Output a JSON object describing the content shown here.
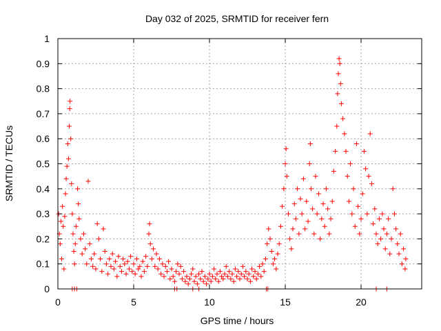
{
  "chart_data": {
    "type": "scatter",
    "title": "Day 032 of 2025, SRMTID for receiver fern",
    "xlabel": "GPS time / hours",
    "ylabel": "SRMTID / TECUs",
    "xlim": [
      0,
      24
    ],
    "ylim": [
      0,
      1
    ],
    "x_ticks": [
      0,
      5,
      10,
      15,
      20
    ],
    "x_tick_labels": [
      "0",
      "5",
      "10",
      "15",
      "20"
    ],
    "y_ticks": [
      0,
      0.1,
      0.2,
      0.3,
      0.4,
      0.5,
      0.6,
      0.7,
      0.8,
      0.9,
      1
    ],
    "y_tick_labels": [
      "0",
      "0.1",
      "0.2",
      "0.3",
      "0.4",
      "0.5",
      "0.6",
      "0.7",
      "0.8",
      "0.9",
      "1"
    ],
    "grid": true,
    "marker": "+",
    "color": "#ff0000",
    "series": [
      {
        "name": "SRMTID",
        "points": [
          [
            0.05,
            0.3
          ],
          [
            0.1,
            0.22
          ],
          [
            0.15,
            0.18
          ],
          [
            0.2,
            0.27
          ],
          [
            0.25,
            0.12
          ],
          [
            0.3,
            0.33
          ],
          [
            0.35,
            0.25
          ],
          [
            0.4,
            0.08
          ],
          [
            0.45,
            0.29
          ],
          [
            0.5,
            0.38
          ],
          [
            0.55,
            0.44
          ],
          [
            0.6,
            0.49
          ],
          [
            0.65,
            0.58
          ],
          [
            0.7,
            0.52
          ],
          [
            0.75,
            0.65
          ],
          [
            0.78,
            0.72
          ],
          [
            0.8,
            0.75
          ],
          [
            0.85,
            0.6
          ],
          [
            0.9,
            0.42
          ],
          [
            0.95,
            0.3
          ],
          [
            1.0,
            0.22
          ],
          [
            1.05,
            0.15
          ],
          [
            1.1,
            0.1
          ],
          [
            1.15,
            0.18
          ],
          [
            1.2,
            0.25
          ],
          [
            1.3,
            0.4
          ],
          [
            1.35,
            0.34
          ],
          [
            1.4,
            0.28
          ],
          [
            1.5,
            0.2
          ],
          [
            1.6,
            0.14
          ],
          [
            1.7,
            0.22
          ],
          [
            1.8,
            0.16
          ],
          [
            1.9,
            0.1
          ],
          [
            2.0,
            0.43
          ],
          [
            2.1,
            0.18
          ],
          [
            2.2,
            0.12
          ],
          [
            2.3,
            0.09
          ],
          [
            2.4,
            0.14
          ],
          [
            2.5,
            0.08
          ],
          [
            2.6,
            0.26
          ],
          [
            2.7,
            0.2
          ],
          [
            2.8,
            0.12
          ],
          [
            2.9,
            0.07
          ],
          [
            3.0,
            0.24
          ],
          [
            3.1,
            0.15
          ],
          [
            3.2,
            0.1
          ],
          [
            3.3,
            0.06
          ],
          [
            3.4,
            0.12
          ],
          [
            3.5,
            0.09
          ],
          [
            3.6,
            0.14
          ],
          [
            3.7,
            0.08
          ],
          [
            3.8,
            0.11
          ],
          [
            3.9,
            0.05
          ],
          [
            4.0,
            0.13
          ],
          [
            4.1,
            0.09
          ],
          [
            4.2,
            0.07
          ],
          [
            4.3,
            0.12
          ],
          [
            4.4,
            0.1
          ],
          [
            4.5,
            0.06
          ],
          [
            4.6,
            0.11
          ],
          [
            4.7,
            0.08
          ],
          [
            4.8,
            0.13
          ],
          [
            4.9,
            0.07
          ],
          [
            5.0,
            0.1
          ],
          [
            5.1,
            0.06
          ],
          [
            5.2,
            0.12
          ],
          [
            5.3,
            0.08
          ],
          [
            5.4,
            0.09
          ],
          [
            5.5,
            0.05
          ],
          [
            5.6,
            0.11
          ],
          [
            5.7,
            0.07
          ],
          [
            5.8,
            0.13
          ],
          [
            5.9,
            0.09
          ],
          [
            6.0,
            0.22
          ],
          [
            6.05,
            0.26
          ],
          [
            6.1,
            0.18
          ],
          [
            6.2,
            0.12
          ],
          [
            6.3,
            0.16
          ],
          [
            6.4,
            0.09
          ],
          [
            6.5,
            0.14
          ],
          [
            6.6,
            0.08
          ],
          [
            6.7,
            0.12
          ],
          [
            6.8,
            0.06
          ],
          [
            6.9,
            0.1
          ],
          [
            7.0,
            0.05
          ],
          [
            7.1,
            0.09
          ],
          [
            7.2,
            0.07
          ],
          [
            7.3,
            0.11
          ],
          [
            7.4,
            0.04
          ],
          [
            7.5,
            0.08
          ],
          [
            7.6,
            0.05
          ],
          [
            7.7,
            0.03
          ],
          [
            7.8,
            0.07
          ],
          [
            7.9,
            0.1
          ],
          [
            8.0,
            0.06
          ],
          [
            8.1,
            0.09
          ],
          [
            8.2,
            0.04
          ],
          [
            8.3,
            0.07
          ],
          [
            8.4,
            0.03
          ],
          [
            8.5,
            0.05
          ],
          [
            8.6,
            0.02
          ],
          [
            8.7,
            0.04
          ],
          [
            8.8,
            0.06
          ],
          [
            8.9,
            0.08
          ],
          [
            9.0,
            0.03
          ],
          [
            9.1,
            0.05
          ],
          [
            9.2,
            0.02
          ],
          [
            9.3,
            0.06
          ],
          [
            9.4,
            0.04
          ],
          [
            9.5,
            0.07
          ],
          [
            9.6,
            0.03
          ],
          [
            9.7,
            0.05
          ],
          [
            9.8,
            0.02
          ],
          [
            9.9,
            0.04
          ],
          [
            10.0,
            0.06
          ],
          [
            10.1,
            0.03
          ],
          [
            10.2,
            0.05
          ],
          [
            10.3,
            0.08
          ],
          [
            10.4,
            0.04
          ],
          [
            10.5,
            0.06
          ],
          [
            10.6,
            0.03
          ],
          [
            10.7,
            0.07
          ],
          [
            10.8,
            0.05
          ],
          [
            10.9,
            0.04
          ],
          [
            11.0,
            0.06
          ],
          [
            11.1,
            0.09
          ],
          [
            11.2,
            0.05
          ],
          [
            11.3,
            0.07
          ],
          [
            11.4,
            0.04
          ],
          [
            11.5,
            0.06
          ],
          [
            11.6,
            0.03
          ],
          [
            11.7,
            0.08
          ],
          [
            11.8,
            0.05
          ],
          [
            11.9,
            0.07
          ],
          [
            12.0,
            0.04
          ],
          [
            12.1,
            0.06
          ],
          [
            12.2,
            0.09
          ],
          [
            12.3,
            0.05
          ],
          [
            12.4,
            0.07
          ],
          [
            12.5,
            0.04
          ],
          [
            12.6,
            0.06
          ],
          [
            12.7,
            0.03
          ],
          [
            12.8,
            0.08
          ],
          [
            12.9,
            0.05
          ],
          [
            13.0,
            0.07
          ],
          [
            13.1,
            0.04
          ],
          [
            13.2,
            0.06
          ],
          [
            13.3,
            0.09
          ],
          [
            13.4,
            0.05
          ],
          [
            13.5,
            0.1
          ],
          [
            13.6,
            0.07
          ],
          [
            13.7,
            0.12
          ],
          [
            13.8,
            0.18
          ],
          [
            13.9,
            0.24
          ],
          [
            14.0,
            0.2
          ],
          [
            14.1,
            0.15
          ],
          [
            14.2,
            0.1
          ],
          [
            14.3,
            0.12
          ],
          [
            14.4,
            0.08
          ],
          [
            14.5,
            0.14
          ],
          [
            14.6,
            0.18
          ],
          [
            14.7,
            0.25
          ],
          [
            14.8,
            0.33
          ],
          [
            14.9,
            0.4
          ],
          [
            15.0,
            0.5
          ],
          [
            15.05,
            0.56
          ],
          [
            15.1,
            0.45
          ],
          [
            15.2,
            0.3
          ],
          [
            15.3,
            0.2
          ],
          [
            15.4,
            0.16
          ],
          [
            15.5,
            0.24
          ],
          [
            15.6,
            0.34
          ],
          [
            15.7,
            0.28
          ],
          [
            15.8,
            0.4
          ],
          [
            15.9,
            0.22
          ],
          [
            16.0,
            0.36
          ],
          [
            16.1,
            0.3
          ],
          [
            16.2,
            0.44
          ],
          [
            16.3,
            0.24
          ],
          [
            16.4,
            0.35
          ],
          [
            16.5,
            0.27
          ],
          [
            16.6,
            0.5
          ],
          [
            16.65,
            0.58
          ],
          [
            16.7,
            0.4
          ],
          [
            16.8,
            0.32
          ],
          [
            16.9,
            0.22
          ],
          [
            17.0,
            0.45
          ],
          [
            17.1,
            0.3
          ],
          [
            17.2,
            0.38
          ],
          [
            17.3,
            0.2
          ],
          [
            17.4,
            0.28
          ],
          [
            17.5,
            0.34
          ],
          [
            17.6,
            0.25
          ],
          [
            17.7,
            0.4
          ],
          [
            17.8,
            0.32
          ],
          [
            17.9,
            0.22
          ],
          [
            18.0,
            0.28
          ],
          [
            18.1,
            0.35
          ],
          [
            18.2,
            0.47
          ],
          [
            18.3,
            0.55
          ],
          [
            18.4,
            0.65
          ],
          [
            18.45,
            0.78
          ],
          [
            18.5,
            0.86
          ],
          [
            18.55,
            0.92
          ],
          [
            18.6,
            0.9
          ],
          [
            18.65,
            0.82
          ],
          [
            18.7,
            0.74
          ],
          [
            18.8,
            0.68
          ],
          [
            18.9,
            0.62
          ],
          [
            19.0,
            0.55
          ],
          [
            19.1,
            0.45
          ],
          [
            19.2,
            0.35
          ],
          [
            19.3,
            0.5
          ],
          [
            19.4,
            0.3
          ],
          [
            19.5,
            0.4
          ],
          [
            19.6,
            0.25
          ],
          [
            19.7,
            0.58
          ],
          [
            19.8,
            0.33
          ],
          [
            19.9,
            0.22
          ],
          [
            20.0,
            0.28
          ],
          [
            20.1,
            0.38
          ],
          [
            20.2,
            0.55
          ],
          [
            20.3,
            0.48
          ],
          [
            20.4,
            0.3
          ],
          [
            20.5,
            0.45
          ],
          [
            20.6,
            0.62
          ],
          [
            20.7,
            0.42
          ],
          [
            20.8,
            0.26
          ],
          [
            20.9,
            0.32
          ],
          [
            21.0,
            0.22
          ],
          [
            21.1,
            0.18
          ],
          [
            21.2,
            0.28
          ],
          [
            21.3,
            0.2
          ],
          [
            21.4,
            0.3
          ],
          [
            21.5,
            0.24
          ],
          [
            21.6,
            0.16
          ],
          [
            21.7,
            0.22
          ],
          [
            21.8,
            0.28
          ],
          [
            21.9,
            0.14
          ],
          [
            22.0,
            0.2
          ],
          [
            22.1,
            0.4
          ],
          [
            22.2,
            0.3
          ],
          [
            22.3,
            0.24
          ],
          [
            22.4,
            0.18
          ],
          [
            22.5,
            0.14
          ],
          [
            22.6,
            0.22
          ],
          [
            22.7,
            0.1
          ],
          [
            22.8,
            0.16
          ],
          [
            22.9,
            0.08
          ],
          [
            22.95,
            0.12
          ],
          [
            0.95,
            0.0
          ],
          [
            1.1,
            0.0
          ],
          [
            1.25,
            0.0
          ],
          [
            7.7,
            0.0
          ],
          [
            7.85,
            0.0
          ],
          [
            8.9,
            0.0
          ],
          [
            9.3,
            0.0
          ],
          [
            13.75,
            0.0
          ],
          [
            13.85,
            0.0
          ],
          [
            21.0,
            0.0
          ],
          [
            21.7,
            0.0
          ]
        ]
      }
    ]
  }
}
